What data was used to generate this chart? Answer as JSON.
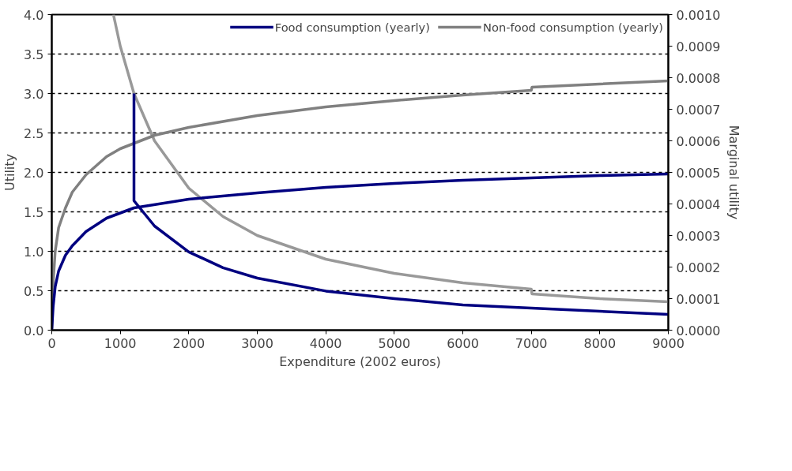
{
  "chart_data": {
    "type": "line",
    "xlabel": "Expenditure (2002 euros)",
    "ylabel": "Utility",
    "y2label": "Marginal utility",
    "xlim": [
      0,
      9000
    ],
    "xticks": [
      0,
      1000,
      2000,
      3000,
      4000,
      5000,
      6000,
      7000,
      8000,
      9000
    ],
    "ylim": [
      0,
      4
    ],
    "yticks": [
      {
        "value": 0,
        "label": "0.0"
      },
      0.5,
      {
        "value": 1,
        "label": "1.0"
      },
      1.5,
      {
        "value": 2,
        "label": "2.0"
      },
      2.5,
      {
        "value": 3,
        "label": "3.0"
      },
      3.5,
      {
        "value": 4,
        "label": "4.0"
      }
    ],
    "y2lim": [
      0,
      0.001
    ],
    "y2ticks": [
      {
        "value": 0,
        "label": "0.0000"
      },
      {
        "value": 0.0001,
        "label": "0.0001"
      },
      {
        "value": 0.0002,
        "label": "0.0002"
      },
      {
        "value": 0.0003,
        "label": "0.0003"
      },
      {
        "value": 0.0004,
        "label": "0.0004"
      },
      {
        "value": 0.0005,
        "label": "0.0005"
      },
      {
        "value": 0.0006,
        "label": "0.0006"
      },
      {
        "value": 0.0007,
        "label": "0.0007"
      },
      {
        "value": 0.0008,
        "label": "0.0008"
      },
      {
        "value": 0.0009,
        "label": "0.0009"
      },
      {
        "value": 0.001,
        "label": "0.0010"
      }
    ],
    "grid": "y",
    "legend": "top right",
    "line_style": "solid",
    "marker": "none",
    "series": [
      {
        "color": "#999999",
        "axis": "y2",
        "x": [
          900,
          1000,
          1200,
          1500,
          2000,
          2500,
          3000,
          4000,
          5000,
          6000,
          7000,
          7010,
          8000,
          9000
        ],
        "values": [
          0.001,
          0.0009,
          0.00075,
          0.0006,
          0.00045,
          0.00036,
          0.0003,
          0.000225,
          0.00018,
          0.00015,
          0.00013,
          0.000115,
          0.0001,
          9e-05
        ]
      },
      {
        "name": "Non-food consumption (yearly)",
        "color": "#808080",
        "x": [
          0,
          20,
          50,
          100,
          200,
          300,
          500,
          800,
          1000,
          1500,
          2000,
          3000,
          4000,
          5000,
          6000,
          7000,
          7010,
          8000,
          9000
        ],
        "values": [
          0,
          0.6,
          1.0,
          1.3,
          1.55,
          1.75,
          1.97,
          2.2,
          2.3,
          2.47,
          2.57,
          2.72,
          2.83,
          2.91,
          2.98,
          3.04,
          3.08,
          3.12,
          3.16
        ]
      },
      {
        "color": "#000080",
        "axis": "y2",
        "x": [
          1200,
          1200,
          1500,
          2000,
          2500,
          3000,
          4000,
          5000,
          6000,
          7000,
          8000,
          9000
        ],
        "values": [
          0.00075,
          0.00041,
          0.00033,
          0.000248,
          0.000198,
          0.000165,
          0.000124,
          0.0001,
          8e-05,
          7e-05,
          6e-05,
          5e-05
        ]
      },
      {
        "name": "Food consumption (yearly)",
        "color": "#000080",
        "x": [
          0,
          20,
          50,
          100,
          200,
          300,
          500,
          800,
          1200,
          2000,
          3000,
          4000,
          5000,
          6000,
          7000,
          8000,
          9000
        ],
        "values": [
          0,
          0.3,
          0.55,
          0.75,
          0.95,
          1.07,
          1.25,
          1.42,
          1.55,
          1.66,
          1.74,
          1.81,
          1.86,
          1.9,
          1.93,
          1.96,
          1.98
        ]
      }
    ]
  }
}
